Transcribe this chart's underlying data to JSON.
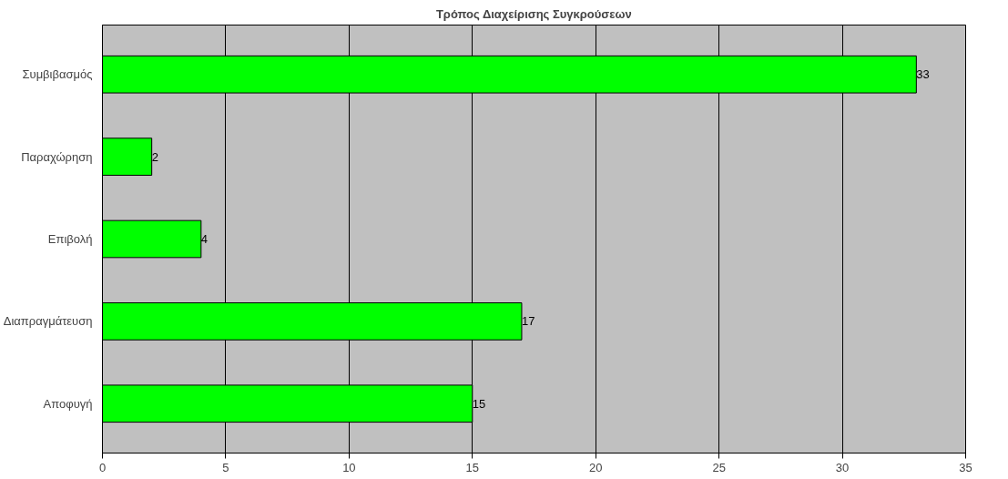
{
  "chart_data": {
    "type": "bar",
    "orientation": "horizontal",
    "title": "Τρόπος Διαχείρισης Συγκρούσεων",
    "categories": [
      "Συμβιβασμός",
      "Παραχώρηση",
      "Επιβολή",
      "Διαπραγμάτευση",
      "Αποφυγή"
    ],
    "values": [
      33,
      2,
      4,
      17,
      15
    ],
    "color": "#00ff00",
    "xlim": [
      0,
      35
    ],
    "xticks": [
      0,
      5,
      10,
      15,
      20,
      25,
      30,
      35
    ],
    "grid": "x",
    "data_labels": true
  }
}
